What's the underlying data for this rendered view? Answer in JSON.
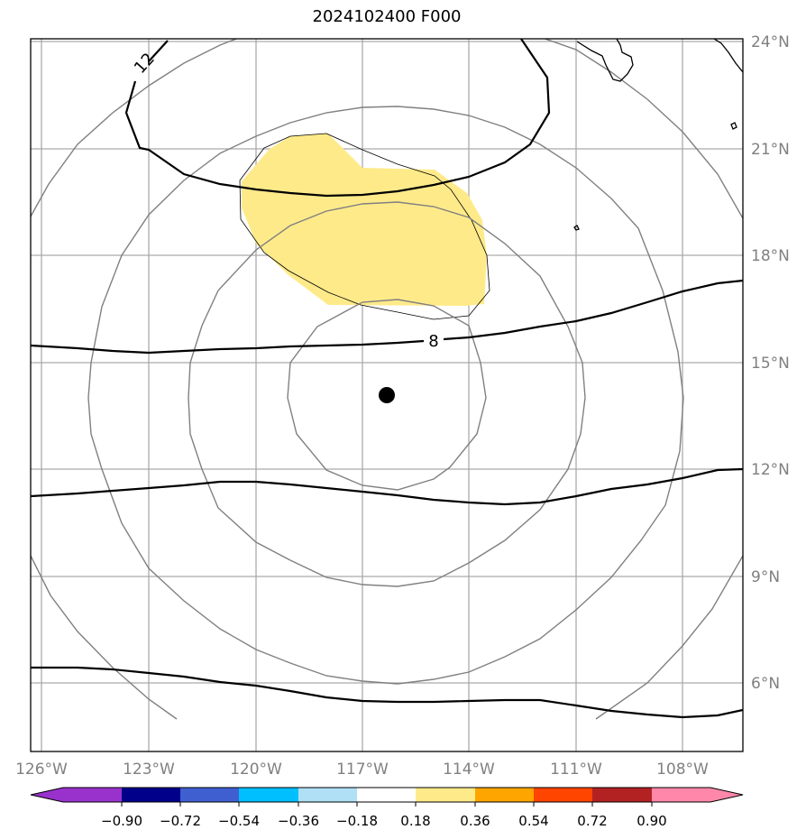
{
  "title": "2024102400 F000",
  "map": {
    "lon_range": [
      -126.3,
      -106.6
    ],
    "lat_range": [
      4.1,
      24.1
    ],
    "lon_ticks": [
      {
        "value": -126,
        "label": "126°W"
      },
      {
        "value": -123,
        "label": "123°W"
      },
      {
        "value": -120,
        "label": "120°W"
      },
      {
        "value": -117,
        "label": "117°W"
      },
      {
        "value": -114,
        "label": "114°W"
      },
      {
        "value": -111,
        "label": "111°W"
      },
      {
        "value": -108,
        "label": "108°W"
      }
    ],
    "lat_ticks": [
      {
        "value": 24,
        "label": "24°N"
      },
      {
        "value": 21,
        "label": "21°N"
      },
      {
        "value": 18,
        "label": "18°N"
      },
      {
        "value": 15,
        "label": "15°N"
      },
      {
        "value": 12,
        "label": "12°N"
      },
      {
        "value": 9,
        "label": "9°N"
      },
      {
        "value": 6,
        "label": "6°N"
      }
    ],
    "center_marker": {
      "lon": -116.3,
      "lat": 14.1
    },
    "contour_labels": [
      {
        "text": "12",
        "lon": -123.0,
        "lat": 22.4
      },
      {
        "text": "8",
        "lon": -115.2,
        "lat": 15.6
      }
    ],
    "shaded_color": "#ffea8a"
  },
  "colorbar": {
    "colors": [
      "#9932cc",
      "#00008b",
      "#3f5fd0",
      "#00bfff",
      "#b0e0f6",
      "#ffffff",
      "#ffea8a",
      "#ffa500",
      "#ff4500",
      "#b22222",
      "#ff88aa"
    ],
    "labels": [
      "−0.90",
      "−0.72",
      "−0.54",
      "−0.36",
      "−0.18",
      "0.18",
      "0.36",
      "0.54",
      "0.72",
      "0.90"
    ]
  }
}
